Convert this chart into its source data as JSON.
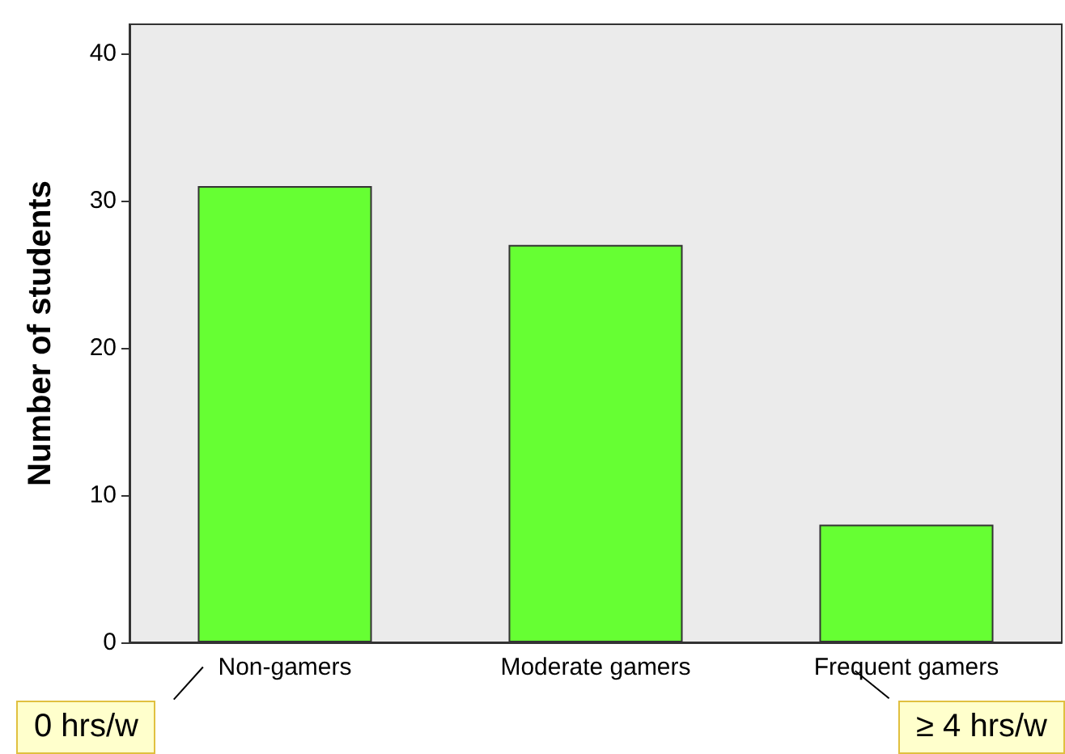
{
  "chart_data": {
    "type": "bar",
    "ylabel": "Number of students",
    "categories": [
      "Non-gamers",
      "Moderate gamers",
      "Frequent gamers"
    ],
    "values": [
      31,
      27,
      8
    ],
    "color": "#66ff33",
    "ylim": [
      0,
      42
    ],
    "yticks": [
      0,
      10,
      20,
      30,
      40
    ],
    "grid": false,
    "annotations": [
      "0 hrs/w",
      "≥ 4 hrs/w"
    ]
  }
}
